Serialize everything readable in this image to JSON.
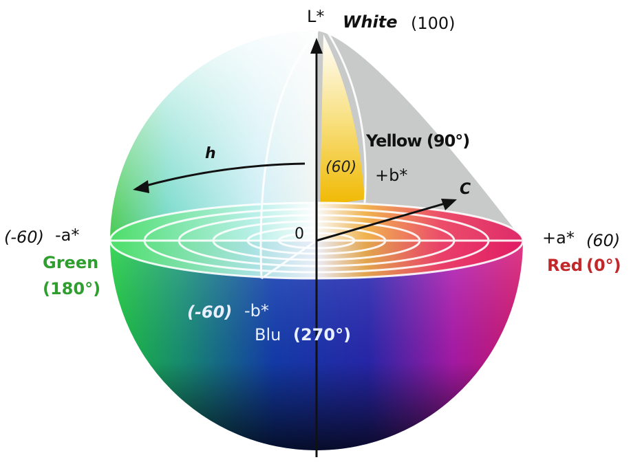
{
  "axes": {
    "l_axis": "L*",
    "white_label": "White",
    "white_value": "(100)",
    "plus_a": "+a*",
    "plus_a_value": "(60)",
    "minus_a": "-a*",
    "minus_a_value": "(-60)",
    "plus_b": "+b*",
    "plus_b_value": "(60)",
    "minus_b": "-b*",
    "minus_b_value": "(-60)",
    "origin": "0"
  },
  "hues": {
    "yellow": "Yellow (90°)",
    "red_name": "Red",
    "red_angle": "(0°)",
    "green_name": "Green",
    "green_angle": "(180°)",
    "blue_name": "Blu",
    "blue_angle": "(270°)"
  },
  "arrows": {
    "hue": "h",
    "chroma": "C"
  },
  "colors": {
    "green": "#2f9e2f",
    "red": "#c0282a",
    "cutaway_gray": "#c8cac9"
  }
}
